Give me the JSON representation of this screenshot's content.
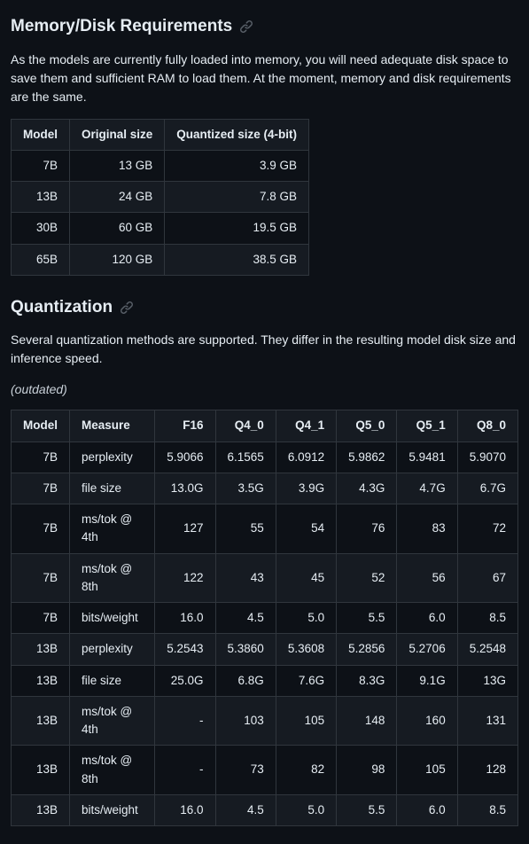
{
  "section1": {
    "heading": "Memory/Disk Requirements",
    "intro": "As the models are currently fully loaded into memory, you will need adequate disk space to save them and sufficient RAM to load them. At the moment, memory and disk requirements are the same.",
    "table": {
      "columns": [
        "Model",
        "Original size",
        "Quantized size (4-bit)"
      ],
      "rows": [
        [
          "7B",
          "13 GB",
          "3.9 GB"
        ],
        [
          "13B",
          "24 GB",
          "7.8 GB"
        ],
        [
          "30B",
          "60 GB",
          "19.5 GB"
        ],
        [
          "65B",
          "120 GB",
          "38.5 GB"
        ]
      ],
      "align": [
        "r",
        "r",
        "r"
      ]
    }
  },
  "section2": {
    "heading": "Quantization",
    "intro": "Several quantization methods are supported. They differ in the resulting model disk size and inference speed.",
    "note": "(outdated)",
    "table": {
      "columns": [
        "Model",
        "Measure",
        "F16",
        "Q4_0",
        "Q4_1",
        "Q5_0",
        "Q5_1",
        "Q8_0"
      ],
      "rows": [
        [
          "7B",
          "perplexity",
          "5.9066",
          "6.1565",
          "6.0912",
          "5.9862",
          "5.9481",
          "5.9070"
        ],
        [
          "7B",
          "file size",
          "13.0G",
          "3.5G",
          "3.9G",
          "4.3G",
          "4.7G",
          "6.7G"
        ],
        [
          "7B",
          "ms/tok @ 4th",
          "127",
          "55",
          "54",
          "76",
          "83",
          "72"
        ],
        [
          "7B",
          "ms/tok @ 8th",
          "122",
          "43",
          "45",
          "52",
          "56",
          "67"
        ],
        [
          "7B",
          "bits/weight",
          "16.0",
          "4.5",
          "5.0",
          "5.5",
          "6.0",
          "8.5"
        ],
        [
          "13B",
          "perplexity",
          "5.2543",
          "5.3860",
          "5.3608",
          "5.2856",
          "5.2706",
          "5.2548"
        ],
        [
          "13B",
          "file size",
          "25.0G",
          "6.8G",
          "7.6G",
          "8.3G",
          "9.1G",
          "13G"
        ],
        [
          "13B",
          "ms/tok @ 4th",
          "-",
          "103",
          "105",
          "148",
          "160",
          "131"
        ],
        [
          "13B",
          "ms/tok @ 8th",
          "-",
          "73",
          "82",
          "98",
          "105",
          "128"
        ],
        [
          "13B",
          "bits/weight",
          "16.0",
          "4.5",
          "5.0",
          "5.5",
          "6.0",
          "8.5"
        ]
      ],
      "align": [
        "r",
        "l",
        "r",
        "r",
        "r",
        "r",
        "r",
        "r"
      ]
    }
  },
  "style": {
    "bg": "#0d1117",
    "text": "#e6edf3",
    "border": "#30363d",
    "row_alt_bg": "#161b22",
    "heading_fontsize": 19,
    "body_fontsize": 14,
    "table_fontsize": 13.5
  }
}
